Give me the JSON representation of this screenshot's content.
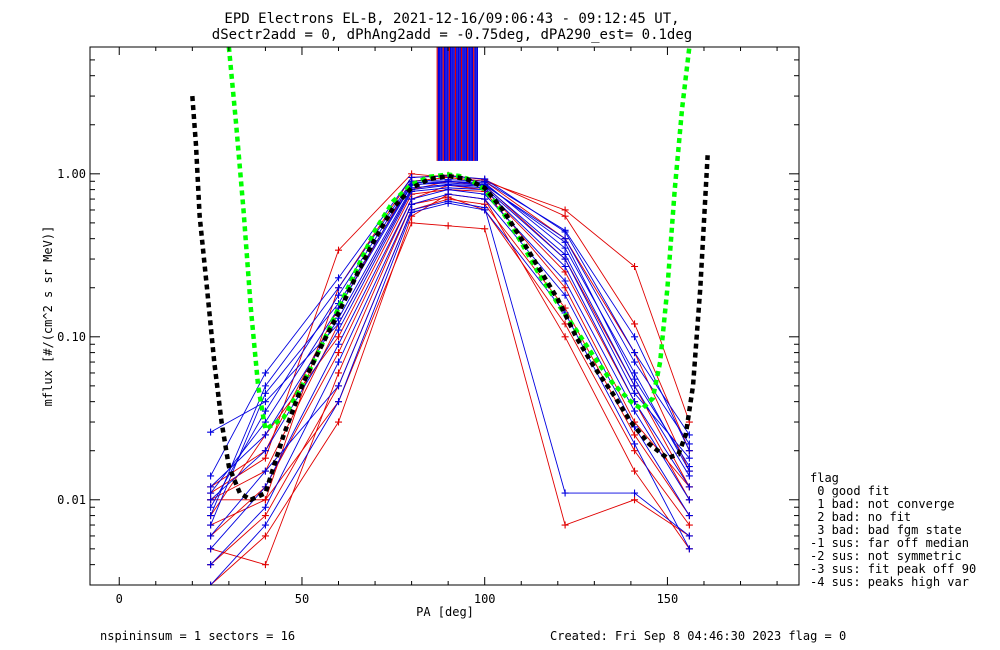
{
  "chart_data": {
    "type": "line",
    "title": "EPD Electrons EL-B, 2021-12-16/09:06:43 - 09:12:45 UT,",
    "subtitle": "dSectr2add = 0, dPhAng2add = -0.75deg, dPA290_est=   0.1deg",
    "xlabel": "PA [deg]",
    "ylabel": "mflux [#/(cm^2 s sr MeV)]",
    "xlim": [
      -8,
      186
    ],
    "ylim": [
      0.003,
      6.0
    ],
    "yscale": "log",
    "grid": false,
    "x_ticks": [
      0,
      50,
      100,
      150
    ],
    "x_tick_labels": [
      "0",
      "50",
      "100",
      "150"
    ],
    "y_ticks": [
      0.01,
      0.1,
      1.0
    ],
    "y_tick_labels": [
      "0.01",
      "0.10",
      "1.00"
    ],
    "colors": {
      "red": "#e00000",
      "blue": "#0000e0",
      "green": "#00ff00",
      "black": "#000000"
    },
    "trace_pa": [
      25,
      40,
      60,
      80,
      90,
      100,
      122,
      141,
      156
    ],
    "series": [
      {
        "color": "red",
        "y": [
          0.01,
          0.015,
          0.12,
          0.8,
          0.9,
          0.85,
          0.3,
          0.05,
          0.012
        ]
      },
      {
        "color": "red",
        "y": [
          0.006,
          0.012,
          0.08,
          0.7,
          0.85,
          0.8,
          0.25,
          0.04,
          0.01
        ]
      },
      {
        "color": "red",
        "y": [
          0.012,
          0.02,
          0.15,
          0.9,
          0.95,
          0.9,
          0.4,
          0.08,
          0.015
        ]
      },
      {
        "color": "red",
        "y": [
          0.004,
          0.008,
          0.05,
          0.6,
          0.7,
          0.65,
          0.15,
          0.025,
          0.008
        ]
      },
      {
        "color": "red",
        "y": [
          0.003,
          0.006,
          0.03,
          0.55,
          0.75,
          0.7,
          0.1,
          0.015,
          0.005
        ]
      },
      {
        "color": "red",
        "y": [
          0.01,
          0.01,
          0.2,
          0.95,
          0.98,
          0.92,
          0.55,
          0.12,
          0.02
        ]
      },
      {
        "color": "red",
        "y": [
          0.008,
          0.025,
          0.1,
          0.75,
          0.8,
          0.78,
          0.2,
          0.03,
          0.012
        ]
      },
      {
        "color": "red",
        "y": [
          0.005,
          0.004,
          0.06,
          0.65,
          0.72,
          0.6,
          0.12,
          0.02,
          0.007
        ]
      },
      {
        "color": "red",
        "y": [
          0.011,
          0.018,
          0.34,
          1.0,
          0.95,
          0.9,
          0.6,
          0.27,
          0.03
        ]
      },
      {
        "color": "red",
        "y": [
          0.007,
          0.01,
          0.04,
          0.5,
          0.48,
          0.46,
          0.007,
          0.01,
          0.006
        ]
      },
      {
        "color": "blue",
        "y": [
          0.011,
          0.03,
          0.15,
          0.85,
          0.9,
          0.88,
          0.35,
          0.06,
          0.015
        ]
      },
      {
        "color": "blue",
        "y": [
          0.008,
          0.05,
          0.2,
          0.9,
          0.92,
          0.9,
          0.45,
          0.1,
          0.02
        ]
      },
      {
        "color": "blue",
        "y": [
          0.005,
          0.012,
          0.09,
          0.7,
          0.8,
          0.75,
          0.22,
          0.035,
          0.01
        ]
      },
      {
        "color": "blue",
        "y": [
          0.026,
          0.04,
          0.12,
          0.8,
          0.85,
          0.82,
          0.3,
          0.045,
          0.018
        ]
      },
      {
        "color": "blue",
        "y": [
          0.004,
          0.009,
          0.07,
          0.65,
          0.75,
          0.7,
          0.18,
          0.028,
          0.008
        ]
      },
      {
        "color": "blue",
        "y": [
          0.014,
          0.06,
          0.23,
          0.95,
          0.97,
          0.93,
          0.44,
          0.08,
          0.025
        ]
      },
      {
        "color": "blue",
        "y": [
          0.01,
          0.02,
          0.11,
          0.78,
          0.82,
          0.8,
          0.27,
          0.04,
          0.012
        ]
      },
      {
        "color": "blue",
        "y": [
          0.006,
          0.015,
          0.05,
          0.6,
          0.68,
          0.62,
          0.011,
          0.011,
          0.006
        ]
      },
      {
        "color": "blue",
        "y": [
          0.009,
          0.035,
          0.18,
          0.88,
          0.9,
          0.86,
          0.38,
          0.055,
          0.016
        ]
      },
      {
        "color": "blue",
        "y": [
          0.003,
          0.007,
          0.04,
          0.58,
          0.66,
          0.6,
          0.14,
          0.022,
          0.005
        ]
      },
      {
        "color": "blue",
        "y": [
          0.012,
          0.025,
          0.13,
          0.82,
          0.86,
          0.84,
          0.32,
          0.05,
          0.014
        ]
      },
      {
        "color": "blue",
        "y": [
          0.007,
          0.045,
          0.16,
          0.86,
          0.88,
          0.85,
          0.4,
          0.07,
          0.022
        ]
      }
    ],
    "fits": [
      {
        "color": "green",
        "x": [
          30,
          32,
          34,
          36,
          38,
          40,
          45,
          50,
          55,
          60,
          65,
          70,
          75,
          80,
          85,
          90,
          93,
          96,
          100,
          105,
          110,
          115,
          120,
          125,
          130,
          135,
          140,
          143,
          146,
          148,
          150,
          152,
          154,
          156
        ],
        "y": [
          6.0,
          2.0,
          0.6,
          0.15,
          0.05,
          0.027,
          0.032,
          0.05,
          0.085,
          0.15,
          0.26,
          0.45,
          0.68,
          0.86,
          0.96,
          0.99,
          0.97,
          0.92,
          0.8,
          0.58,
          0.38,
          0.24,
          0.16,
          0.11,
          0.075,
          0.052,
          0.04,
          0.036,
          0.042,
          0.07,
          0.2,
          0.8,
          2.5,
          6.0
        ]
      },
      {
        "color": "black",
        "x": [
          20,
          21,
          22,
          24,
          26,
          28,
          30,
          33,
          36,
          40,
          45,
          50,
          55,
          60,
          65,
          70,
          75,
          80,
          85,
          90,
          95,
          100,
          105,
          110,
          115,
          120,
          125,
          130,
          135,
          140,
          145,
          150,
          153,
          155,
          157,
          159,
          161
        ],
        "y": [
          3.0,
          1.5,
          0.55,
          0.2,
          0.07,
          0.03,
          0.016,
          0.011,
          0.01,
          0.011,
          0.025,
          0.05,
          0.085,
          0.14,
          0.24,
          0.4,
          0.62,
          0.82,
          0.93,
          0.97,
          0.93,
          0.82,
          0.6,
          0.4,
          0.26,
          0.17,
          0.1,
          0.065,
          0.045,
          0.03,
          0.022,
          0.018,
          0.019,
          0.025,
          0.05,
          0.2,
          1.3
        ]
      }
    ],
    "saturated_bundle": {
      "x_min": 87,
      "x_max": 98,
      "y_min": 1.2,
      "y_max": 6.0
    },
    "legend": {
      "placement": "right",
      "title": "flag",
      "entries": [
        " 0 good fit",
        " 1 bad: not converge",
        " 2 bad: no fit",
        " 3 bad: bad fgm state",
        "-1 sus: far off median",
        "-2 sus: not symmetric",
        "-3 sus: fit peak off 90",
        "-4 sus: peaks high var"
      ]
    },
    "footer": {
      "left": "nspininsum =  1  sectors = 16",
      "right": "Created: Fri Sep  8 04:46:30 2023   flag = 0"
    }
  }
}
